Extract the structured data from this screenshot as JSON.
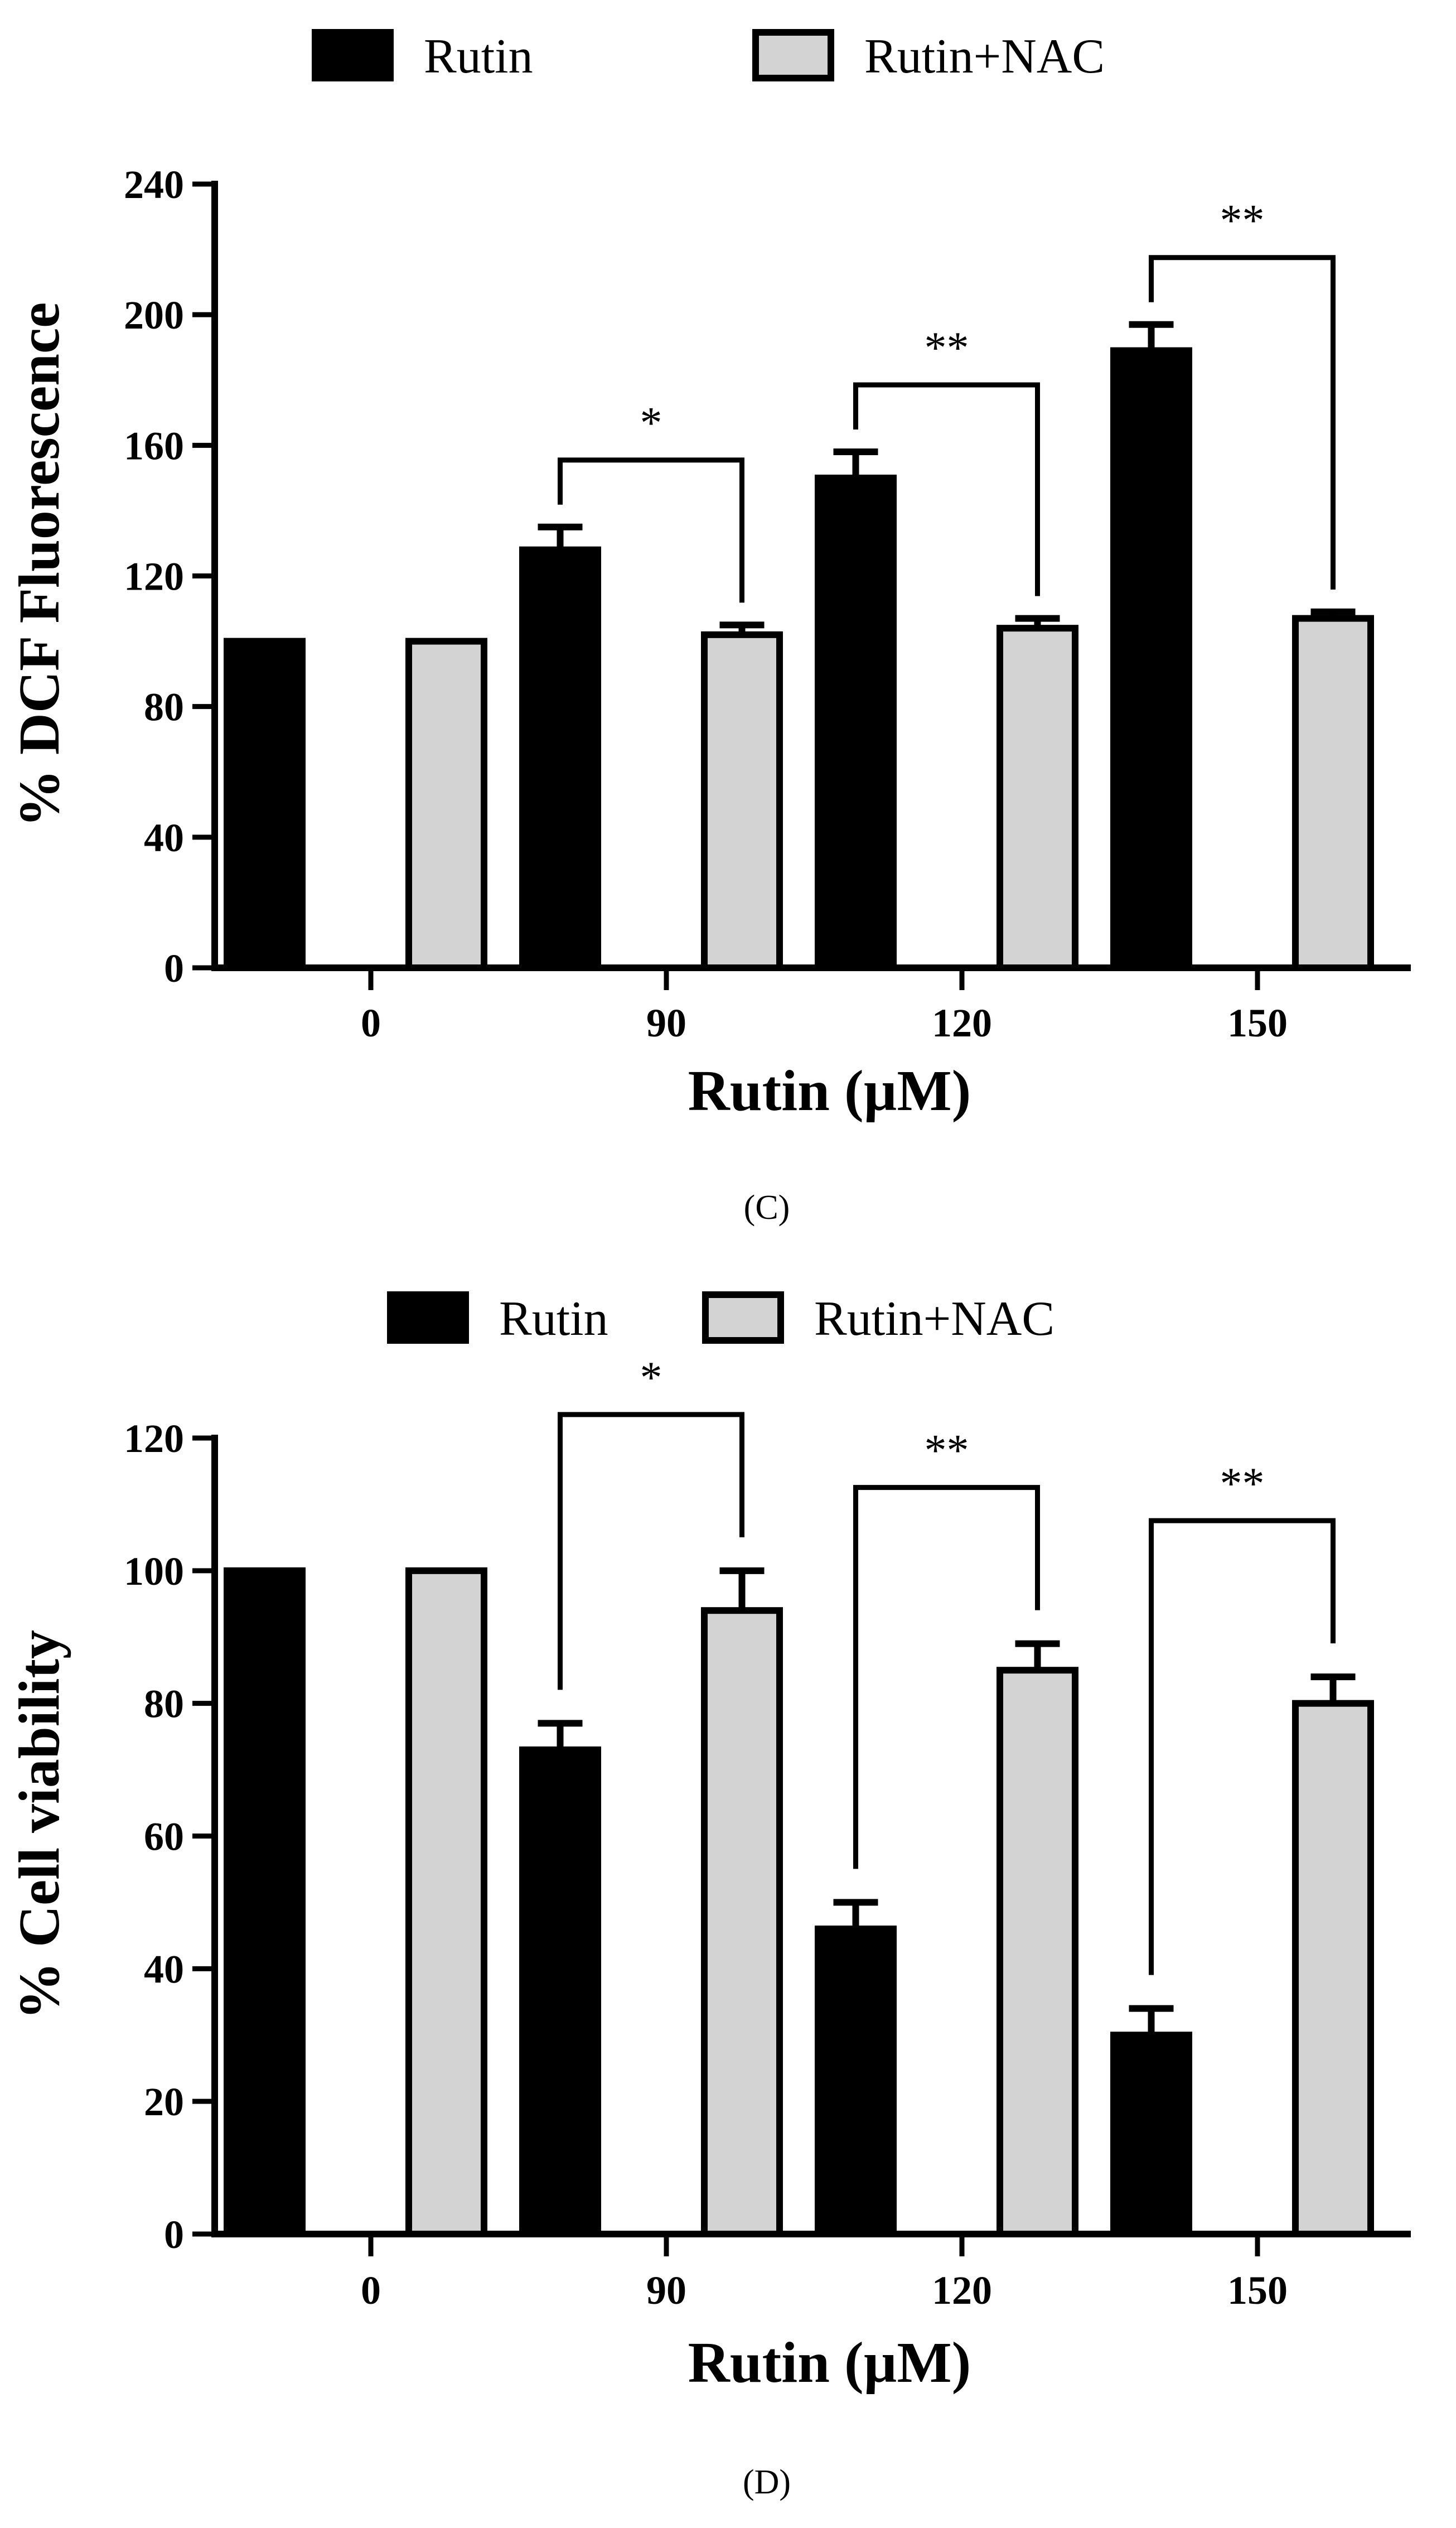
{
  "chart_data": [
    {
      "type": "bar",
      "panel_label": "(C)",
      "title": "",
      "xlabel": "Rutin (µM)",
      "ylabel": "% DCF Fluorescence",
      "categories": [
        "0",
        "90",
        "120",
        "150"
      ],
      "ylim": [
        0,
        240
      ],
      "yticks": [
        0,
        40,
        80,
        120,
        160,
        200,
        240
      ],
      "legend_position": "top",
      "series": [
        {
          "name": "Rutin",
          "color": "#000000",
          "values": [
            100,
            128,
            150,
            189
          ],
          "errors": [
            0,
            7,
            8,
            8
          ]
        },
        {
          "name": "Rutin+NAC",
          "color": "#d3d3d3",
          "values": [
            100,
            102,
            104,
            107
          ],
          "errors": [
            0,
            3,
            3,
            2
          ]
        }
      ],
      "significance": [
        {
          "category_index": 1,
          "label": "*"
        },
        {
          "category_index": 2,
          "label": "**"
        },
        {
          "category_index": 3,
          "label": "**"
        }
      ]
    },
    {
      "type": "bar",
      "panel_label": "(D)",
      "title": "",
      "xlabel": "Rutin (µM)",
      "ylabel": "% Cell viability",
      "categories": [
        "0",
        "90",
        "120",
        "150"
      ],
      "ylim": [
        0,
        120
      ],
      "yticks": [
        0,
        20,
        40,
        60,
        80,
        100,
        120
      ],
      "legend_position": "top",
      "series": [
        {
          "name": "Rutin",
          "color": "#000000",
          "values": [
            100,
            73,
            46,
            30
          ],
          "errors": [
            0,
            4,
            4,
            4
          ]
        },
        {
          "name": "Rutin+NAC",
          "color": "#d3d3d3",
          "values": [
            100,
            94,
            85,
            80
          ],
          "errors": [
            0,
            6,
            4,
            4
          ]
        }
      ],
      "significance": [
        {
          "category_index": 1,
          "label": "*"
        },
        {
          "category_index": 2,
          "label": "**"
        },
        {
          "category_index": 3,
          "label": "**"
        }
      ]
    }
  ]
}
